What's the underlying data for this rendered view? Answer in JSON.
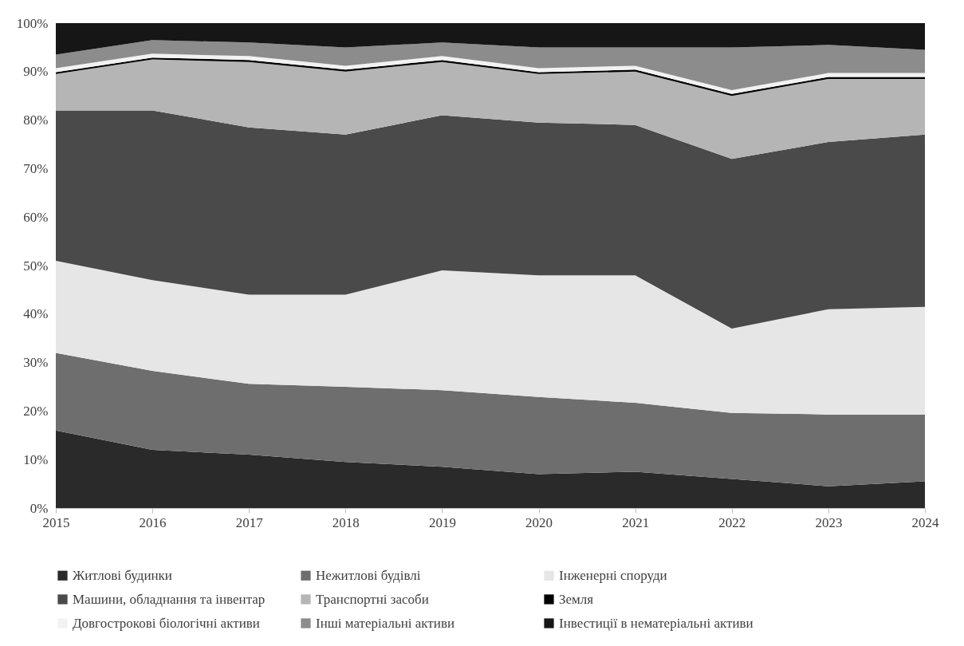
{
  "chart_data": {
    "type": "area",
    "stacked": true,
    "legend": "bottom",
    "x": [
      2015,
      2016,
      2017,
      2018,
      2019,
      2020,
      2021,
      2022,
      2023,
      2024
    ],
    "xlim": [
      2015,
      2024
    ],
    "xticks": [
      2015,
      2016,
      2017,
      2018,
      2019,
      2020,
      2021,
      2022,
      2023,
      2024
    ],
    "ylim": [
      0,
      100
    ],
    "yticks": [
      {
        "value": 0,
        "label": "0%"
      },
      {
        "value": 10,
        "label": "10%"
      },
      {
        "value": 20,
        "label": "20%"
      },
      {
        "value": 30,
        "label": "30%"
      },
      {
        "value": 40,
        "label": "40%"
      },
      {
        "value": 50,
        "label": "50%"
      },
      {
        "value": 60,
        "label": "60%"
      },
      {
        "value": 70,
        "label": "70%"
      },
      {
        "value": 80,
        "label": "80%"
      },
      {
        "value": 90,
        "label": "90%"
      },
      {
        "value": 100,
        "label": "100%"
      }
    ],
    "series": [
      {
        "name": "Житлові будинки",
        "color": "#2a2a2a",
        "values": [
          16,
          12,
          11,
          9.5,
          8.5,
          7,
          7.5,
          6,
          4.5,
          5.5
        ]
      },
      {
        "name": "Нежитлові будівлі",
        "color": "#6e6e6e",
        "values": [
          16,
          16.3,
          14.6,
          15.5,
          15.8,
          15.9,
          14.2,
          13.6,
          14.8,
          13.8
        ]
      },
      {
        "name": "Інженерні споруди",
        "color": "#e6e6e6",
        "values": [
          19,
          18.7,
          18.4,
          19,
          24.7,
          25.1,
          26.3,
          17.4,
          21.7,
          22.2
        ]
      },
      {
        "name": "Машини, обладнання та інвентар",
        "color": "#4a4a4a",
        "values": [
          31,
          35,
          34.5,
          33,
          32,
          31.5,
          31,
          35,
          34.5,
          35.5
        ]
      },
      {
        "name": "Транспортні засоби",
        "color": "#b5b5b5",
        "values": [
          7.5,
          10.5,
          13.5,
          13,
          11,
          10,
          11,
          13,
          13,
          11.5
        ]
      },
      {
        "name": "Земля",
        "color": "#000000",
        "values": [
          0.4,
          0.4,
          0.4,
          0.4,
          0.4,
          0.4,
          0.4,
          0.4,
          0.4,
          0.4
        ]
      },
      {
        "name": "Довгострокові біологічні активи",
        "color": "#f2f2f2",
        "values": [
          0.8,
          0.8,
          0.8,
          0.8,
          0.8,
          0.8,
          0.8,
          0.8,
          0.8,
          0.8
        ]
      },
      {
        "name": "Інші матеріальні активи",
        "color": "#8c8c8c",
        "values": [
          2.8,
          2.8,
          2.8,
          3.8,
          2.8,
          4.3,
          3.8,
          8.8,
          5.8,
          4.8
        ]
      },
      {
        "name": "Інвестиції в нематеріальні активи",
        "color": "#161616",
        "values": [
          6.5,
          3.5,
          4,
          5,
          4,
          5,
          5,
          5,
          4.5,
          5.5
        ]
      }
    ]
  }
}
